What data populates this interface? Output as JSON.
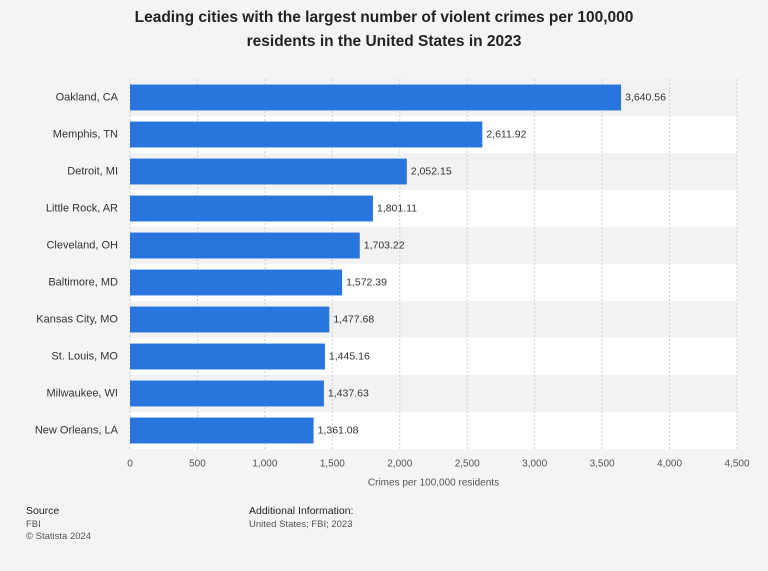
{
  "chart_data": {
    "type": "hbar",
    "title": "Leading cities with the largest number of violent crimes per 100,000 residents in the United States in 2023",
    "x_label": "Crimes per 100,000 residents",
    "categories": [
      "Oakland, CA",
      "Memphis, TN",
      "Detroit, MI",
      "Little Rock, AR",
      "Cleveland, OH",
      "Baltimore, MD",
      "Kansas City, MO",
      "St. Louis, MO",
      "Milwaukee, WI",
      "New Orleans, LA"
    ],
    "values": [
      3640.56,
      2611.92,
      2052.15,
      1801.11,
      1703.22,
      1572.39,
      1477.68,
      1445.16,
      1437.63,
      1361.08
    ],
    "value_labels": [
      "3,640.56",
      "2,611.92",
      "2,052.15",
      "1,801.11",
      "1,703.22",
      "1,572.39",
      "1,477.68",
      "1,445.16",
      "1,437.63",
      "1,361.08"
    ],
    "color": "#2876dd",
    "xlim": [
      0,
      4500
    ],
    "xticks": [
      0,
      500,
      {
        "value": 1000,
        "label": "1,000"
      },
      {
        "value": 1500,
        "label": "1,500"
      },
      {
        "value": 2000,
        "label": "2,000"
      },
      {
        "value": 2500,
        "label": "2,500"
      },
      {
        "value": 3000,
        "label": "3,000"
      },
      {
        "value": 3500,
        "label": "3,500"
      },
      {
        "value": 4000,
        "label": "4,000"
      },
      {
        "value": 4500,
        "label": "4,500"
      }
    ],
    "grid": true
  },
  "footer": {
    "source_title": "Source",
    "source": "FBI",
    "copyright": "© Statista 2024",
    "info_title": "Additional Information:",
    "info": "United States; FBI; 2023"
  }
}
